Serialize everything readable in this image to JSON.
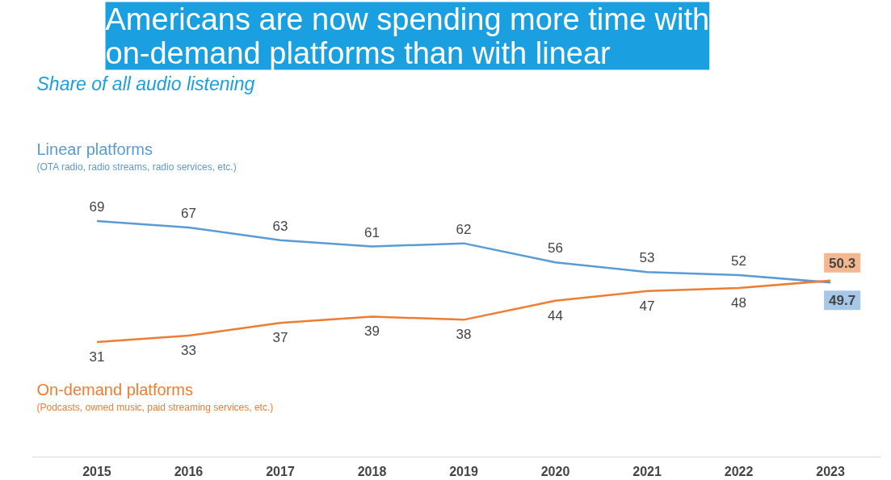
{
  "chart_data": {
    "type": "line",
    "title": "Americans are now spending more time with on-demand platforms than with linear",
    "subtitle": "Share of all audio listening",
    "categories": [
      "2015",
      "2016",
      "2017",
      "2018",
      "2019",
      "2020",
      "2021",
      "2022",
      "2023"
    ],
    "series": [
      {
        "name": "Linear platforms",
        "color": "#5b9bd5",
        "values": [
          69,
          67,
          63,
          61,
          62,
          56,
          53,
          52,
          49.7
        ]
      },
      {
        "name": "On-demand platforms",
        "color": "#ed7d31",
        "values": [
          31,
          33,
          37,
          39,
          38,
          44,
          47,
          48,
          50.3
        ]
      }
    ],
    "annotations": [
      "(OTA radio, radio streams, radio services, etc.)",
      "(Podcasts, owned music, paid streaming services, etc.)"
    ],
    "data_labels": true,
    "grid": false,
    "tick_labels": "x",
    "marker": "none",
    "line_style": "solid"
  }
}
